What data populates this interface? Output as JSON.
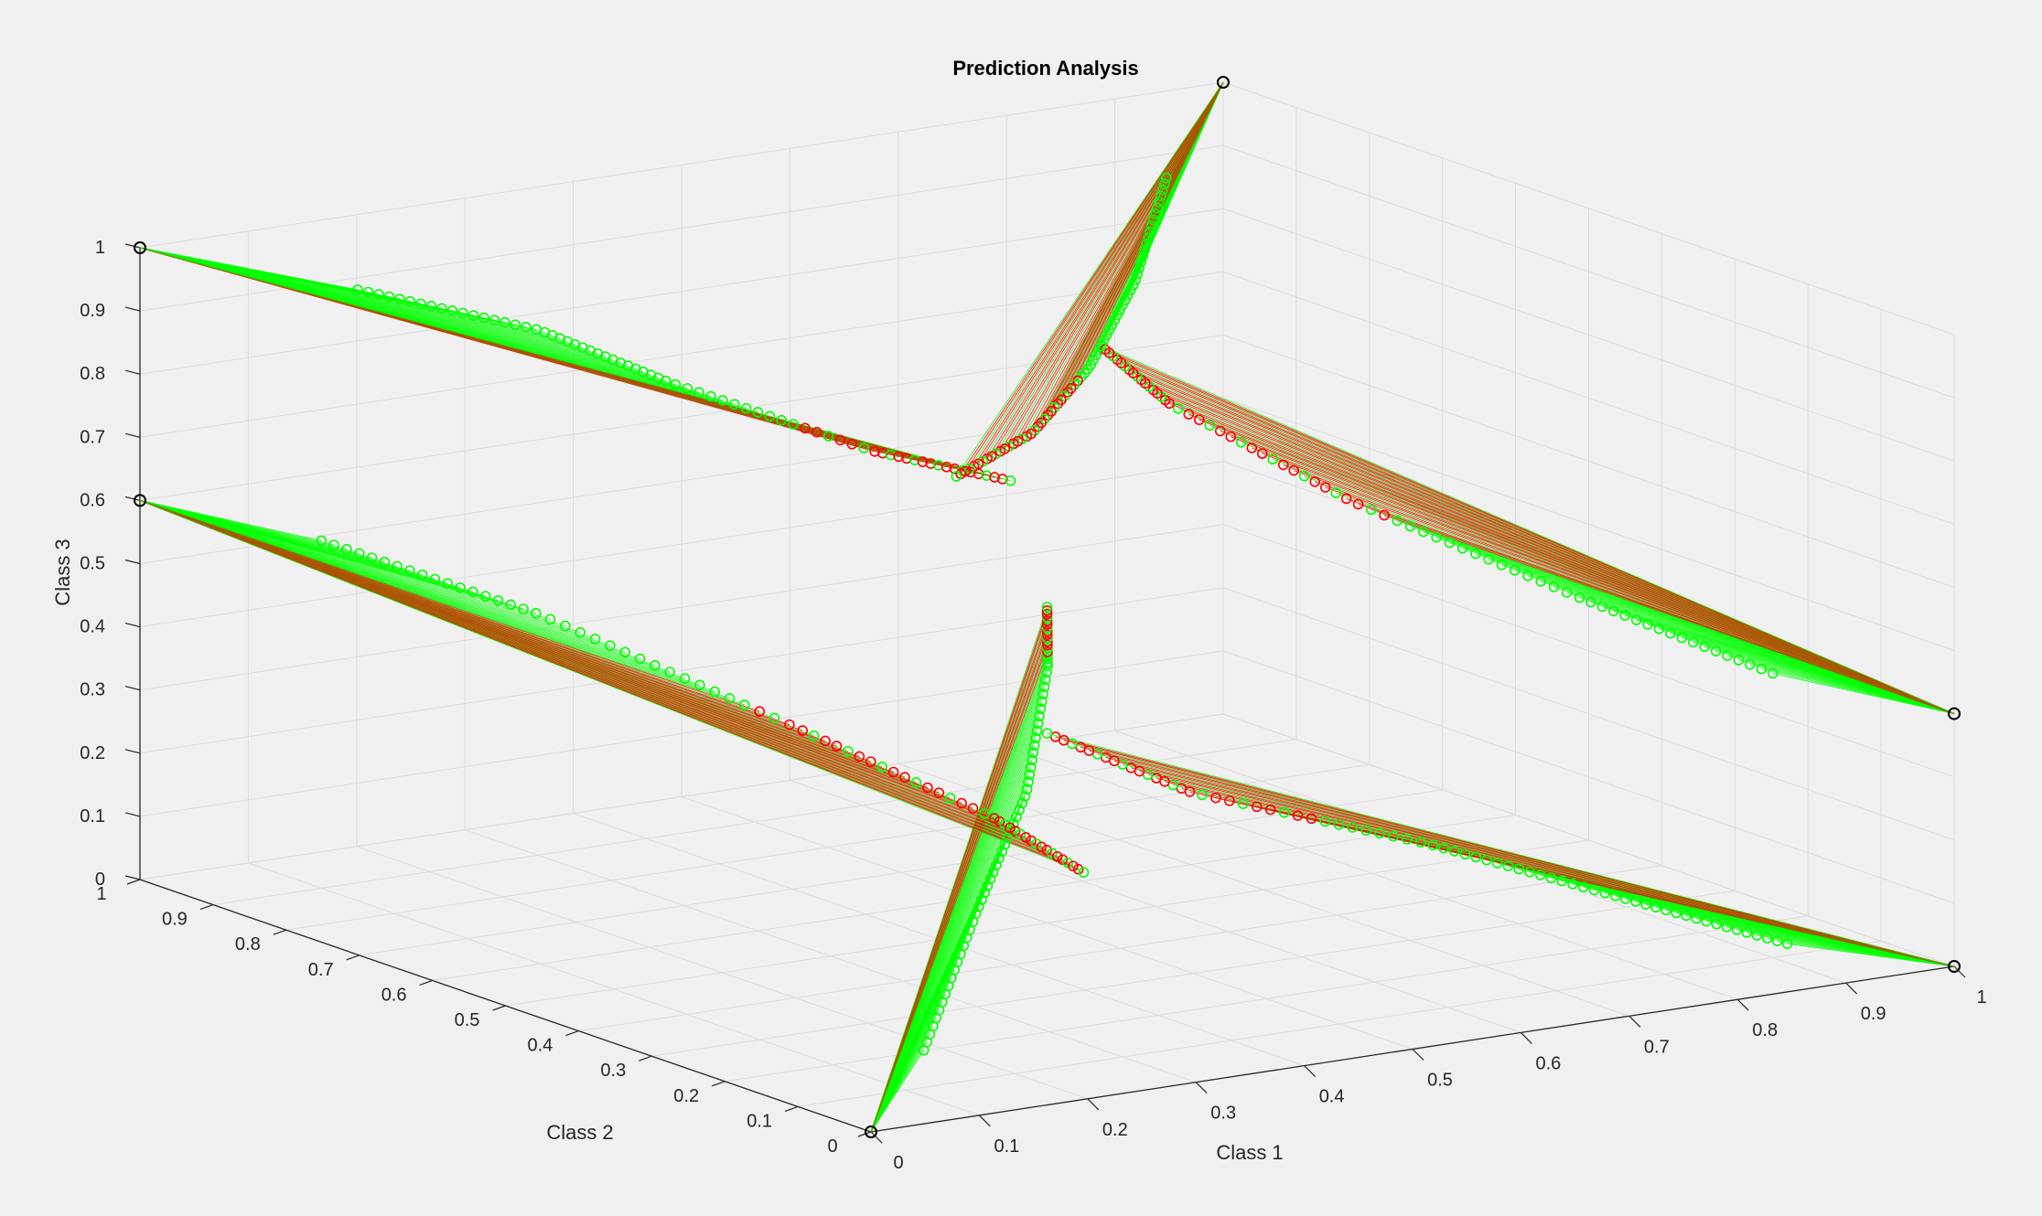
{
  "chart_data": {
    "type": "scatter3d",
    "title": "Prediction Analysis",
    "xlabel": "Class 1",
    "ylabel": "Class 2",
    "zlabel": "Class 3",
    "xlim": [
      0,
      1
    ],
    "ylim": [
      0,
      1
    ],
    "zlim": [
      0,
      1
    ],
    "ticks": [
      "0",
      "0.1",
      "0.2",
      "0.3",
      "0.4",
      "0.5",
      "0.6",
      "0.7",
      "0.8",
      "0.9",
      "1"
    ],
    "grid": true,
    "background": "#f0f0f0",
    "colors": {
      "correct": "#00ff00",
      "incorrect": "#ff0000",
      "anchor": "#000000",
      "grid": "#dcdcdc",
      "axis": "#262626"
    },
    "anchors": [
      {
        "x": 0,
        "y": 0,
        "z": 0
      },
      {
        "x": 1,
        "y": 0,
        "z": 0
      },
      {
        "x": 0,
        "y": 1,
        "z": 1
      },
      {
        "x": 1,
        "y": 1,
        "z": 1
      },
      {
        "x": 0,
        "y": 1,
        "z": 0.6
      },
      {
        "x": 1,
        "y": 0,
        "z": 0.4
      }
    ],
    "series": [
      {
        "anchor": 0,
        "path": [
          [
            0.15,
            0.15,
            0.03
          ],
          [
            0.3,
            0.3,
            0.15
          ],
          [
            0.4,
            0.38,
            0.28
          ],
          [
            0.46,
            0.44,
            0.44
          ],
          [
            0.5,
            0.5,
            0.5
          ]
        ],
        "start_frac": 0.2,
        "green_frac": 0.8,
        "red_tail": true
      },
      {
        "anchor": 1,
        "path": [
          [
            0.9,
            0.08,
            0.03
          ],
          [
            0.82,
            0.2,
            0.08
          ],
          [
            0.75,
            0.35,
            0.12
          ],
          [
            0.6,
            0.45,
            0.2
          ],
          [
            0.5,
            0.5,
            0.3
          ]
        ],
        "start_frac": 0.35,
        "green_frac": 0.6,
        "red_tail": true
      },
      {
        "anchor": 2,
        "path": [
          [
            0.12,
            0.88,
            0.95
          ],
          [
            0.22,
            0.78,
            0.9
          ],
          [
            0.3,
            0.72,
            0.82
          ],
          [
            0.42,
            0.62,
            0.72
          ],
          [
            0.5,
            0.55,
            0.68
          ]
        ],
        "start_frac": 0.3,
        "green_frac": 0.65,
        "red_tail": true
      },
      {
        "anchor": 3,
        "path": [
          [
            0.88,
            0.9,
            0.92
          ],
          [
            0.75,
            0.75,
            0.85
          ],
          [
            0.62,
            0.62,
            0.8
          ],
          [
            0.52,
            0.55,
            0.75
          ],
          [
            0.45,
            0.55,
            0.7
          ]
        ],
        "start_frac": 0.4,
        "green_frac": 0.55,
        "red_tail": true
      },
      {
        "anchor": 4,
        "path": [
          [
            0.1,
            0.9,
            0.55
          ],
          [
            0.22,
            0.78,
            0.45
          ],
          [
            0.35,
            0.62,
            0.3
          ],
          [
            0.45,
            0.5,
            0.18
          ],
          [
            0.5,
            0.45,
            0.1
          ]
        ],
        "start_frac": 0.1,
        "green_frac": 0.45,
        "red_tail": true
      },
      {
        "anchor": 5,
        "path": [
          [
            0.9,
            0.1,
            0.45
          ],
          [
            0.8,
            0.22,
            0.55
          ],
          [
            0.68,
            0.35,
            0.68
          ],
          [
            0.58,
            0.45,
            0.82
          ],
          [
            0.55,
            0.5,
            0.9
          ]
        ],
        "start_frac": 0.1,
        "green_frac": 0.45,
        "red_tail": true
      }
    ]
  }
}
